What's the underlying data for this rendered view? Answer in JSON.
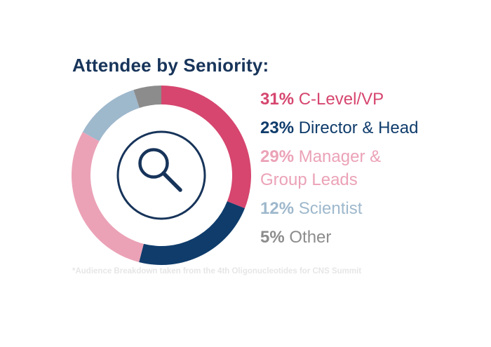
{
  "title": "Attendee by Seniority:",
  "footnote": "*Audience Breakdown taken from the 4th Oligonucleotides for CNS Summit",
  "icon": "search-icon",
  "colors": {
    "title": "#17345a",
    "footnote": "#e6e6e6",
    "icon": "#17345a"
  },
  "chart_data": {
    "type": "pie",
    "variant": "donut",
    "title": "Attendee by Seniority:",
    "legend_placement": "right",
    "categories": [
      "C-Level/VP",
      "Director & Head",
      "Manager & Group Leads",
      "Scientist",
      "Other"
    ],
    "values": [
      31,
      23,
      29,
      12,
      5
    ],
    "unit": "%",
    "colors": [
      "#d6466f",
      "#0f3c6b",
      "#eba2b7",
      "#9eb8cc",
      "#8c8c8c"
    ]
  },
  "legend": [
    {
      "pct": "31%",
      "label": "C-Level/VP",
      "color": "#d6466f"
    },
    {
      "pct": "23%",
      "label": "Director & Head",
      "color": "#0f3c6b"
    },
    {
      "pct": "29%",
      "label": "Manager & Group Leads",
      "color": "#eba2b7"
    },
    {
      "pct": "12%",
      "label": "Scientist",
      "color": "#9eb8cc"
    },
    {
      "pct": "5%",
      "label": "Other",
      "color": "#8c8c8c"
    }
  ]
}
